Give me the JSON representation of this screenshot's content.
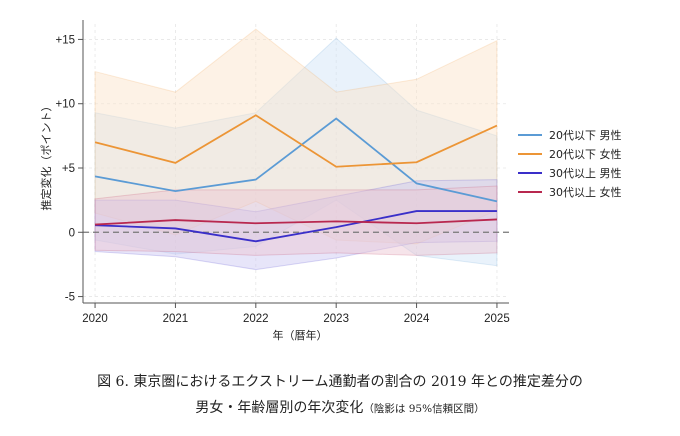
{
  "chart_data": {
    "type": "line",
    "title": "",
    "xlabel": "年（暦年）",
    "ylabel": "推定変化（ポイント）",
    "x": [
      2020,
      2021,
      2022,
      2023,
      2024,
      2025
    ],
    "xticks": [
      "2020",
      "2021",
      "2022",
      "2023",
      "2024",
      "2025"
    ],
    "yticks": [
      {
        "value": 15,
        "label": "+15"
      },
      {
        "value": 10,
        "label": "+10"
      },
      {
        "value": 5,
        "label": "+5"
      },
      {
        "value": 0,
        "label": "0"
      },
      {
        "value": -5,
        "label": "-5"
      }
    ],
    "ylim": [
      -5.5,
      16.2
    ],
    "xlim": [
      2019.85,
      2025.15
    ],
    "grid": true,
    "reference_line": {
      "value": 0,
      "style": "dashed",
      "color": "#777777"
    },
    "legend_position": "right",
    "series": [
      {
        "name": "20代以下 男性",
        "color": "#5b9bd5",
        "fill": "#cfe3f7",
        "values": [
          4.35,
          3.2,
          4.1,
          8.85,
          3.8,
          2.4
        ],
        "ci_upper": [
          9.3,
          8.1,
          9.3,
          15.1,
          9.5,
          7.5
        ],
        "ci_lower": [
          -0.6,
          -1.7,
          -1.1,
          2.5,
          -1.8,
          -2.6
        ]
      },
      {
        "name": "20代以下 女性",
        "color": "#ec9536",
        "fill": "#fbe3c8",
        "values": [
          7.0,
          5.4,
          9.1,
          5.1,
          5.45,
          8.3
        ],
        "ci_upper": [
          12.5,
          10.9,
          15.8,
          10.9,
          11.9,
          14.9
        ],
        "ci_lower": [
          1.5,
          -0.2,
          2.4,
          -0.6,
          -0.9,
          1.7
        ]
      },
      {
        "name": "30代以上 男性",
        "color": "#3a2fc9",
        "fill": "#c9c6f2",
        "values": [
          0.55,
          0.3,
          -0.7,
          0.4,
          1.65,
          1.65
        ],
        "ci_upper": [
          2.5,
          2.5,
          1.6,
          2.8,
          4.0,
          4.1
        ],
        "ci_lower": [
          -1.5,
          -1.9,
          -2.9,
          -2.0,
          -0.8,
          -0.7
        ]
      },
      {
        "name": "30代以上 女性",
        "color": "#b8284f",
        "fill": "#ecc4d0",
        "values": [
          0.6,
          0.95,
          0.7,
          0.85,
          0.7,
          1.0
        ],
        "ci_upper": [
          2.6,
          3.3,
          3.3,
          3.3,
          3.3,
          3.6
        ],
        "ci_lower": [
          -1.4,
          -1.5,
          -1.8,
          -1.6,
          -1.8,
          -1.6
        ]
      }
    ]
  },
  "caption": {
    "line1": "図 6.  東京圏におけるエクストリーム通勤者の割合の 2019 年との推定差分の",
    "line2_main": "男女・年齢層別の年次変化",
    "line2_note": "（陰影は 95%信頼区間）"
  }
}
